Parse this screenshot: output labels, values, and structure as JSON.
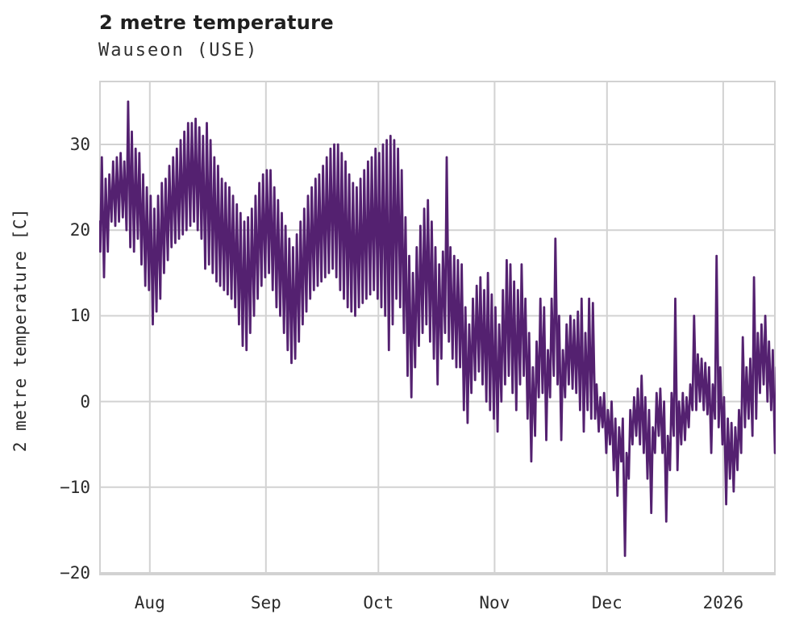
{
  "header": {
    "title": "2 metre temperature",
    "subtitle": "Wauseon (USE)"
  },
  "chart_data": {
    "type": "line",
    "title": "2 metre temperature",
    "subtitle": "Wauseon (USE)",
    "ylabel": "2 metre temperature [C]",
    "xlabel": "",
    "legend": "none",
    "grid": true,
    "line_color": "#542170",
    "grid_color": "#d2d2d2",
    "text_color": "#2b2b2b",
    "ylim": [
      -20.3,
      37.4
    ],
    "y_ticks": [
      {
        "label": "30",
        "value": 30
      },
      {
        "label": "20",
        "value": 20
      },
      {
        "label": "10",
        "value": 10
      },
      {
        "label": "0",
        "value": 0
      },
      {
        "label": "−10",
        "value": -10
      },
      {
        "label": "−20",
        "value": -20
      }
    ],
    "x_ticks": [
      {
        "label": "Aug",
        "day": 13.5
      },
      {
        "label": "Sep",
        "day": 44.5
      },
      {
        "label": "Oct",
        "day": 74.5
      },
      {
        "label": "Nov",
        "day": 105.5
      },
      {
        "label": "Dec",
        "day": 135.5
      },
      {
        "label": "2026",
        "day": 166.5
      }
    ],
    "days_shown": 180.5,
    "start_value": 21,
    "end_value": -6,
    "daily_min": [
      17.5,
      14.5,
      17.5,
      21,
      20.5,
      21,
      21.5,
      20,
      18,
      17.5,
      19,
      16,
      13.5,
      13,
      9,
      10.5,
      12,
      15,
      16.5,
      18,
      18.5,
      19,
      19.5,
      20,
      20.5,
      21,
      20,
      19,
      15.5,
      16,
      15,
      14,
      13.5,
      13,
      12.5,
      12,
      11,
      9,
      6.5,
      6,
      8,
      10,
      12,
      13.5,
      14.5,
      15,
      13,
      11,
      10,
      8,
      6,
      4.5,
      5,
      7,
      9,
      10.5,
      12,
      13,
      13.5,
      14,
      14.5,
      15,
      15.5,
      14.5,
      13,
      12,
      11,
      10.5,
      10,
      11,
      11.5,
      12,
      12.5,
      13,
      12,
      11,
      10,
      6,
      9,
      12,
      11,
      8,
      3,
      0.5,
      4,
      6.5,
      8,
      9,
      7,
      5,
      2,
      5,
      8,
      7,
      5,
      4,
      4,
      -1,
      -2.5,
      1,
      2.5,
      3.5,
      2,
      0,
      -1,
      -2,
      -3.5,
      0,
      2,
      3,
      1,
      -1,
      2,
      3,
      -2,
      -7,
      -4,
      0.5,
      1,
      -4.5,
      0.5,
      3,
      2,
      -4.5,
      0.5,
      2,
      1.5,
      1,
      -1,
      -3.5,
      -1,
      -2,
      -2,
      -3.5,
      -3,
      -6,
      -5,
      -8,
      -11,
      -7,
      -18,
      -9,
      -5,
      -4,
      -5,
      -6,
      -9,
      -13,
      -6,
      -4,
      -6,
      -14,
      -8,
      -4,
      -8,
      -5,
      -4.5,
      -3,
      -1,
      -1,
      0,
      -1,
      -1.5,
      -6,
      -2,
      -3,
      -5,
      -12,
      -9,
      -10.5,
      -8,
      -6,
      -3,
      -2,
      -4,
      -2,
      1,
      2,
      0,
      -1,
      -6
    ],
    "daily_max": [
      28.5,
      26,
      26.5,
      28,
      28.5,
      29,
      28,
      35,
      31.5,
      29.5,
      29,
      26.5,
      25,
      24,
      22.5,
      24,
      25.5,
      26,
      27.5,
      28.5,
      29.5,
      30.5,
      31.5,
      32.5,
      32.5,
      33,
      32,
      31,
      32.5,
      30.5,
      28.5,
      27.5,
      26,
      25.5,
      25,
      24,
      23,
      22,
      21,
      21.5,
      22.5,
      24,
      25.5,
      26.5,
      27,
      27,
      25,
      23.5,
      22,
      20.5,
      19,
      18,
      19.5,
      21,
      22.5,
      24,
      25,
      26,
      26.5,
      27.5,
      28.5,
      29.5,
      30,
      30,
      29,
      28,
      26.5,
      25.5,
      25,
      26,
      27,
      28,
      28.5,
      29.5,
      29,
      30,
      30.5,
      31,
      30.5,
      29.5,
      27,
      21.5,
      17,
      15,
      18,
      20.5,
      22.5,
      23.5,
      21,
      18,
      16,
      17.5,
      28.5,
      18,
      17,
      16.5,
      16,
      11,
      9,
      12,
      13.5,
      14.5,
      13,
      15,
      12.5,
      11,
      9,
      13,
      16.5,
      16,
      14,
      13,
      16,
      12,
      8,
      4,
      7,
      12,
      11,
      6,
      12,
      19,
      10,
      6,
      9,
      10,
      9.5,
      10.5,
      12,
      8,
      12,
      11.5,
      2,
      0.5,
      1,
      -1,
      0,
      -2,
      -3,
      -2,
      -6,
      -1,
      0.5,
      1.5,
      3,
      0.5,
      -1,
      -3,
      1,
      1.5,
      0,
      -4,
      1,
      12,
      0,
      1,
      0.5,
      2,
      10,
      5.5,
      5,
      4.5,
      4,
      2,
      17,
      4,
      0.5,
      -2,
      -2.5,
      -3,
      -1,
      7.5,
      4,
      5,
      14.5,
      8,
      9,
      10,
      7,
      6,
      4
    ]
  }
}
